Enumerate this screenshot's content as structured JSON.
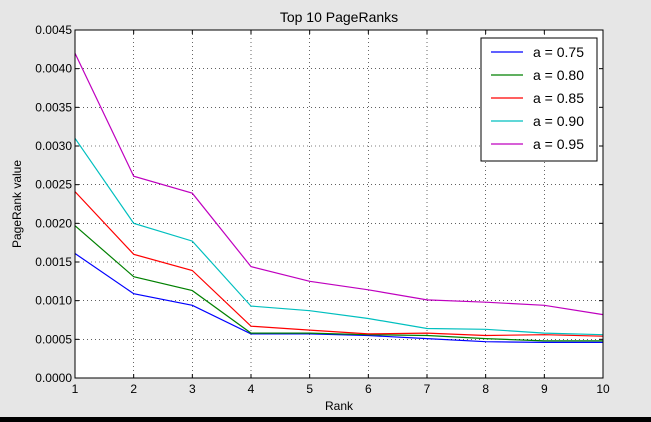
{
  "chart_data": {
    "type": "line",
    "title": "Top 10 PageRanks",
    "xlabel": "Rank",
    "ylabel": "PageRank value",
    "x": [
      1,
      2,
      3,
      4,
      5,
      6,
      7,
      8,
      9,
      10
    ],
    "xlim": [
      1,
      10
    ],
    "ylim": [
      0,
      0.0045
    ],
    "xticks": [
      "1",
      "2",
      "3",
      "4",
      "5",
      "6",
      "7",
      "8",
      "9",
      "10"
    ],
    "yticks": [
      "0.0000",
      "0.0005",
      "0.0010",
      "0.0015",
      "0.0020",
      "0.0025",
      "0.0030",
      "0.0035",
      "0.0040",
      "0.0045"
    ],
    "grid": true,
    "legend_position": "top-right",
    "series": [
      {
        "name": "a = 0.75",
        "color": "#0000ff",
        "values": [
          0.00161,
          0.00109,
          0.00094,
          0.00057,
          0.00057,
          0.00055,
          0.00051,
          0.00047,
          0.00046,
          0.00046
        ]
      },
      {
        "name": "a = 0.80",
        "color": "#008000",
        "values": [
          0.00197,
          0.00131,
          0.00113,
          0.00058,
          0.00058,
          0.00056,
          0.00055,
          0.00051,
          0.00048,
          0.00048
        ]
      },
      {
        "name": "a = 0.85",
        "color": "#ff0000",
        "values": [
          0.00241,
          0.0016,
          0.00139,
          0.00067,
          0.00062,
          0.00057,
          0.00058,
          0.00055,
          0.00056,
          0.00054
        ]
      },
      {
        "name": "a = 0.90",
        "color": "#00bfbf",
        "values": [
          0.0031,
          0.002,
          0.00177,
          0.00093,
          0.00087,
          0.00077,
          0.00064,
          0.00063,
          0.00058,
          0.00056
        ]
      },
      {
        "name": "a = 0.95",
        "color": "#bf00bf",
        "values": [
          0.0042,
          0.00261,
          0.00239,
          0.00144,
          0.00125,
          0.00114,
          0.00101,
          0.00098,
          0.00094,
          0.00082
        ]
      }
    ]
  }
}
